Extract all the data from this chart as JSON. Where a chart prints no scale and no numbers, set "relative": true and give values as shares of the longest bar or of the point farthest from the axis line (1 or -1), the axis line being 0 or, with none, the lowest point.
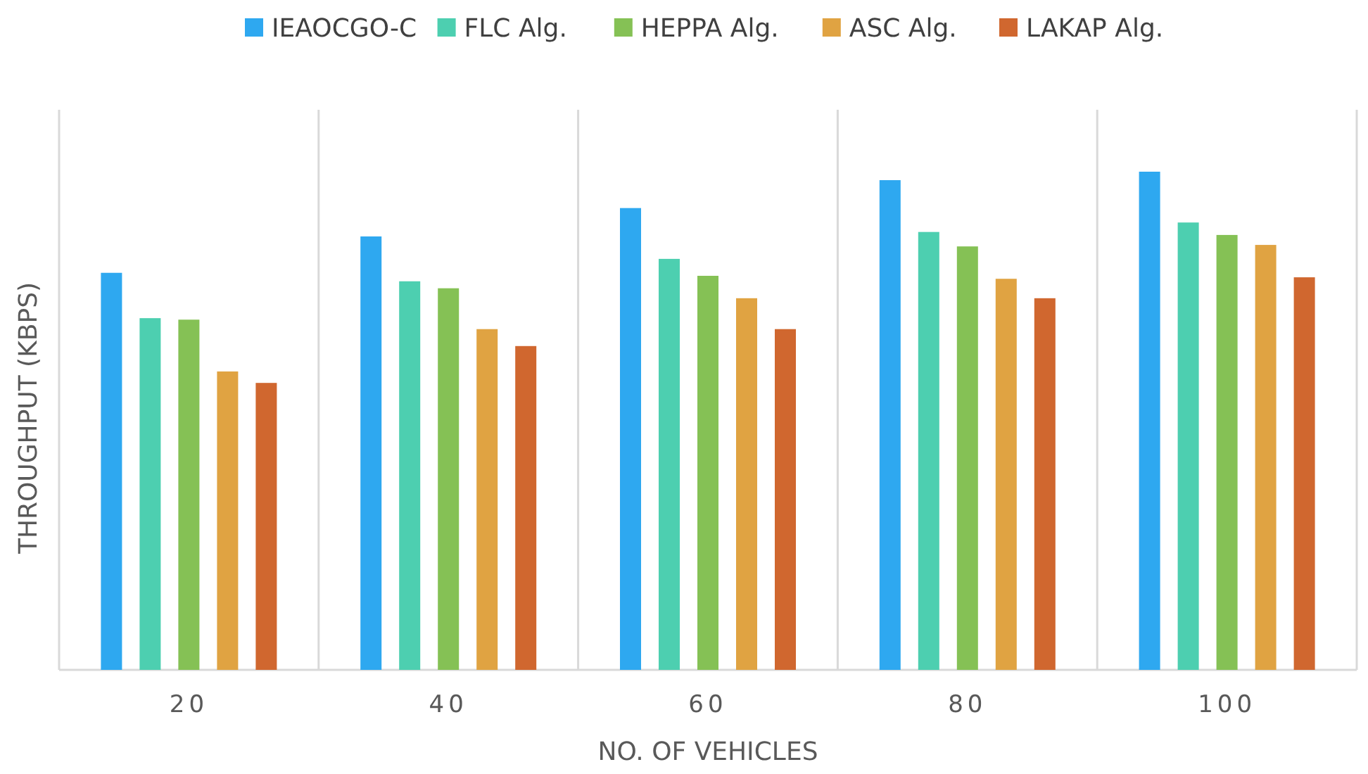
{
  "chart_data": {
    "type": "bar",
    "relative": true,
    "xlabel": "NO. OF VEHICLES",
    "ylabel": "THROUGHPUT (KBPS)",
    "categories": [
      "20",
      "40",
      "60",
      "80",
      "100"
    ],
    "grid": "x",
    "legend": "top",
    "series": [
      {
        "name": "IEAOCGO-C",
        "color": "#2ea8f0",
        "values": [
          0.797,
          0.87,
          0.927,
          0.983,
          1
        ]
      },
      {
        "name": "FLC Alg.",
        "color": "#4dcfb0",
        "values": [
          0.706,
          0.78,
          0.825,
          0.879,
          0.898
        ]
      },
      {
        "name": "HEPPA Alg.",
        "color": "#85c155",
        "values": [
          0.703,
          0.766,
          0.791,
          0.85,
          0.873
        ]
      },
      {
        "name": "ASC Alg.",
        "color": "#e0a342",
        "values": [
          0.599,
          0.684,
          0.746,
          0.785,
          0.853
        ]
      },
      {
        "name": "LAKAP Alg.",
        "color": "#d0672f",
        "values": [
          0.576,
          0.65,
          0.684,
          0.746,
          0.788
        ]
      }
    ]
  }
}
